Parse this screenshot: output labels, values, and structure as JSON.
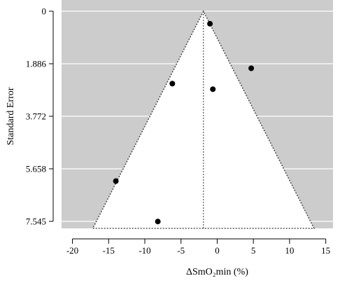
{
  "chart_data": {
    "type": "scatter",
    "subtype": "funnel",
    "title": "",
    "xlabel": "ΔSmO₂min (%)",
    "ylabel": "Standard Error",
    "xlim": [
      -21.5,
      16.0
    ],
    "ylim": [
      7.545,
      0
    ],
    "y_inverted": true,
    "x_ticks": [
      -20,
      -15,
      -10,
      -5,
      0,
      5,
      10,
      15
    ],
    "x_tick_labels": [
      "-20",
      "-15",
      "-10",
      "-5",
      "0",
      "5",
      "10",
      "15"
    ],
    "y_ticks": [
      0,
      1.886,
      3.772,
      5.658,
      7.545
    ],
    "y_tick_labels": [
      "0",
      "1.886",
      "3.772",
      "5.658",
      "7.545"
    ],
    "pooled_estimate": -1.9,
    "funnel_z": 1.96,
    "points": [
      {
        "x": -1.0,
        "y": 0.45
      },
      {
        "x": 4.7,
        "y": 2.05
      },
      {
        "x": -6.2,
        "y": 2.6
      },
      {
        "x": -0.6,
        "y": 2.8
      },
      {
        "x": -14.0,
        "y": 6.1
      },
      {
        "x": -8.2,
        "y": 7.55
      }
    ],
    "grid": true,
    "colors": {
      "outside_funnel": "#cccccc",
      "inside_funnel": "#ffffff",
      "gridline": "#ffffff",
      "points": "#000000",
      "funnel_line": "#555555"
    }
  }
}
